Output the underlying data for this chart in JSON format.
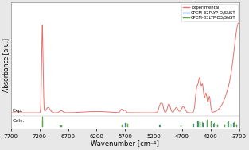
{
  "xlabel": "Wavenumber [cm⁻¹]",
  "ylabel": "Absorbance [a.u.]",
  "xmin": 3700,
  "xmax": 7700,
  "legend_entries": [
    "Experimental",
    "CPCM-B2PLYP-D/SNST",
    "CPCM-B3LYP-D3/SNST"
  ],
  "exp_color": "#e8706a",
  "blue_color": "#4472c4",
  "green_color": "#5aaa3c",
  "exp_label": "Exp.",
  "calc_label": "Calc.",
  "background_color": "#e8e8e8",
  "axis_bg": "#ffffff",
  "xticks": [
    7700,
    7200,
    6700,
    6200,
    5700,
    5200,
    4700,
    4200,
    3700
  ],
  "blue_pos": [
    7150,
    6840,
    6820,
    5760,
    5700,
    5660,
    5100,
    4730,
    4500,
    4430,
    4390,
    4340,
    4270,
    4200,
    4150,
    4090,
    3960,
    3900,
    3850,
    3800,
    3750
  ],
  "blue_h": [
    0.55,
    0.06,
    0.05,
    0.1,
    0.25,
    0.18,
    0.1,
    0.07,
    0.22,
    0.45,
    0.35,
    0.28,
    0.55,
    0.38,
    0.22,
    0.12,
    0.1,
    0.35,
    0.18,
    0.28,
    0.14
  ],
  "green_pos": [
    7148,
    6835,
    6815,
    5755,
    5695,
    5655,
    5095,
    4725,
    4510,
    4425,
    4395,
    4345,
    4265,
    4195,
    4145,
    4085,
    3955,
    3895,
    3845,
    3795,
    3745
  ],
  "green_h": [
    0.9,
    0.07,
    0.06,
    0.12,
    0.3,
    0.22,
    0.12,
    0.08,
    0.24,
    0.5,
    0.38,
    0.32,
    0.62,
    0.42,
    0.25,
    0.14,
    0.12,
    0.4,
    0.2,
    0.32,
    0.16
  ]
}
